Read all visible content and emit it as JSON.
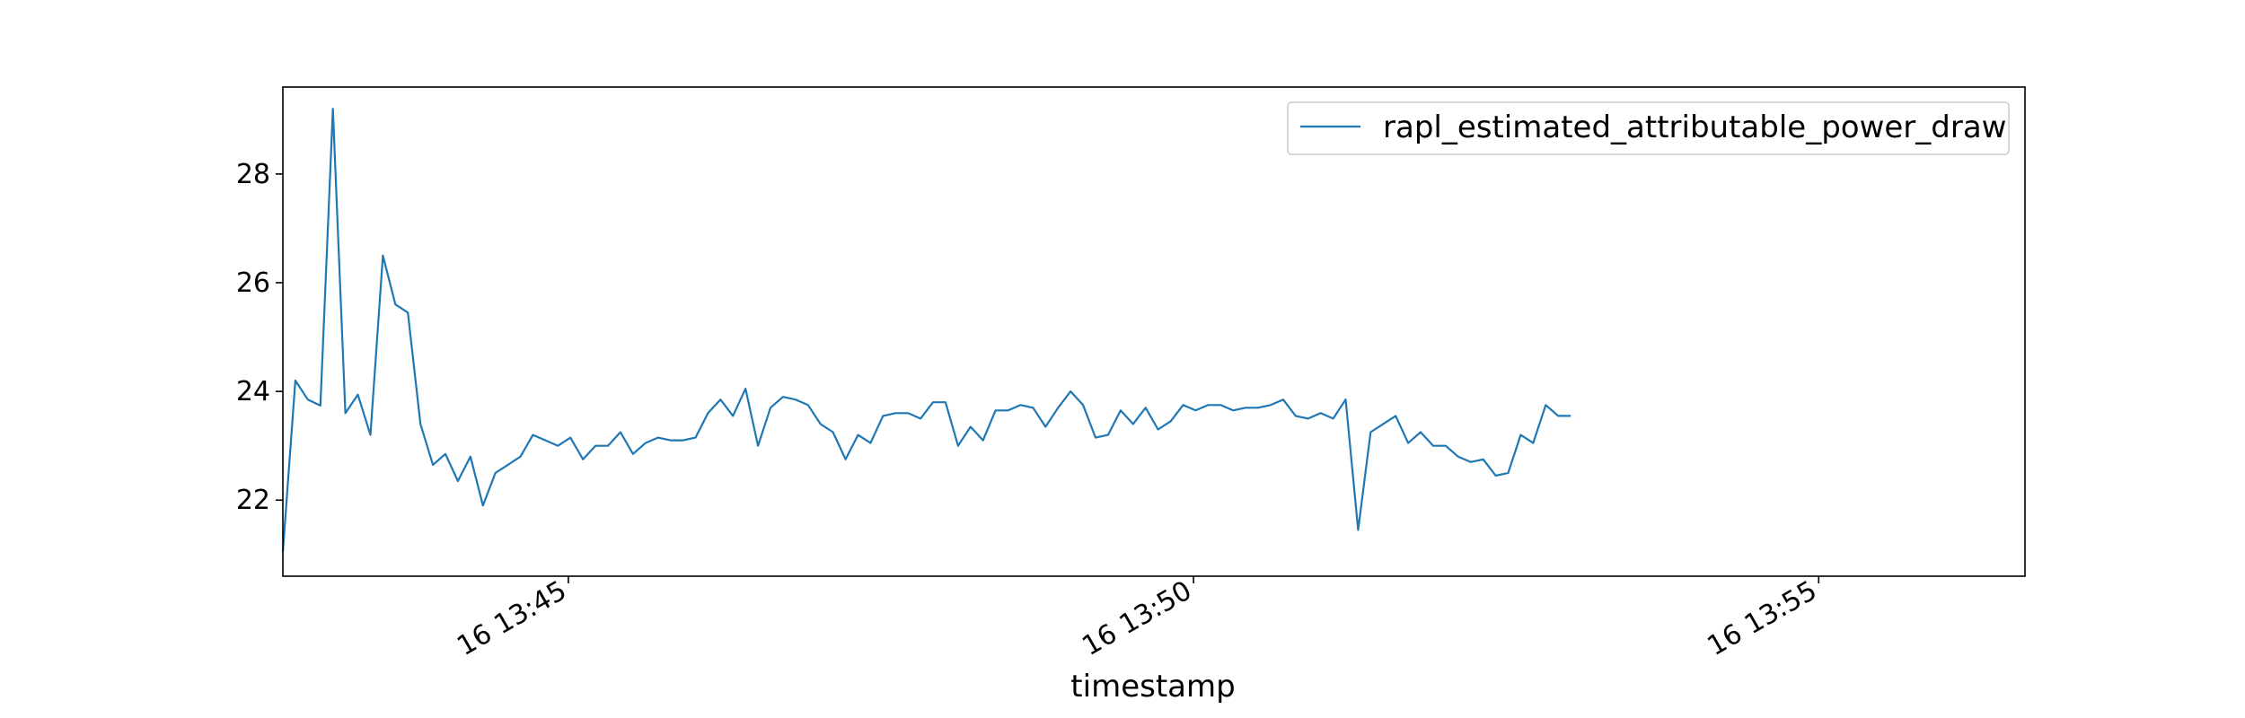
{
  "chart_data": {
    "type": "line",
    "title": "",
    "xlabel": "timestamp",
    "ylabel": "",
    "x_start": "2000-01-16 13:42:43",
    "x_step_seconds": 6,
    "xlim": [
      "2000-01-16 13:42:43",
      "2000-01-16 13:56:39"
    ],
    "ylim": [
      20.6,
      29.6
    ],
    "x_ticks": [
      {
        "value": "2000-01-16 13:45:00",
        "label": "16 13:45"
      },
      {
        "value": "2000-01-16 13:50:00",
        "label": "16 13:50"
      },
      {
        "value": "2000-01-16 13:55:00",
        "label": "16 13:55"
      }
    ],
    "y_ticks": [
      22,
      24,
      26,
      28
    ],
    "grid": false,
    "legend": {
      "position": "upper right"
    },
    "colors": {
      "line": "#1f77b4",
      "axes": "#000000",
      "legend_border": "#cccccc"
    },
    "series": [
      {
        "name": "rapl_estimated_attributable_power_draw",
        "values": [
          21.05,
          24.2,
          23.85,
          23.74,
          29.2,
          23.6,
          23.94,
          23.2,
          26.5,
          25.6,
          25.45,
          23.4,
          22.65,
          22.85,
          22.35,
          22.8,
          21.9,
          22.5,
          22.65,
          22.8,
          23.2,
          23.1,
          23.0,
          23.15,
          22.75,
          23.0,
          23.0,
          23.25,
          22.85,
          23.05,
          23.15,
          23.1,
          23.1,
          23.15,
          23.6,
          23.85,
          23.55,
          24.05,
          23.0,
          23.7,
          23.9,
          23.85,
          23.75,
          23.4,
          23.25,
          22.75,
          23.2,
          23.05,
          23.55,
          23.6,
          23.6,
          23.5,
          23.8,
          23.8,
          23.0,
          23.35,
          23.1,
          23.65,
          23.65,
          23.75,
          23.7,
          23.35,
          23.7,
          24.0,
          23.75,
          23.15,
          23.2,
          23.65,
          23.4,
          23.7,
          23.3,
          23.45,
          23.75,
          23.65,
          23.75,
          23.75,
          23.65,
          23.7,
          23.7,
          23.75,
          23.85,
          23.55,
          23.5,
          23.6,
          23.5,
          23.85,
          21.45,
          23.25,
          23.4,
          23.55,
          23.05,
          23.25,
          23.0,
          23.0,
          22.8,
          22.7,
          22.75,
          22.45,
          22.5,
          23.2,
          23.05,
          23.75,
          23.55,
          23.55
        ]
      }
    ]
  }
}
